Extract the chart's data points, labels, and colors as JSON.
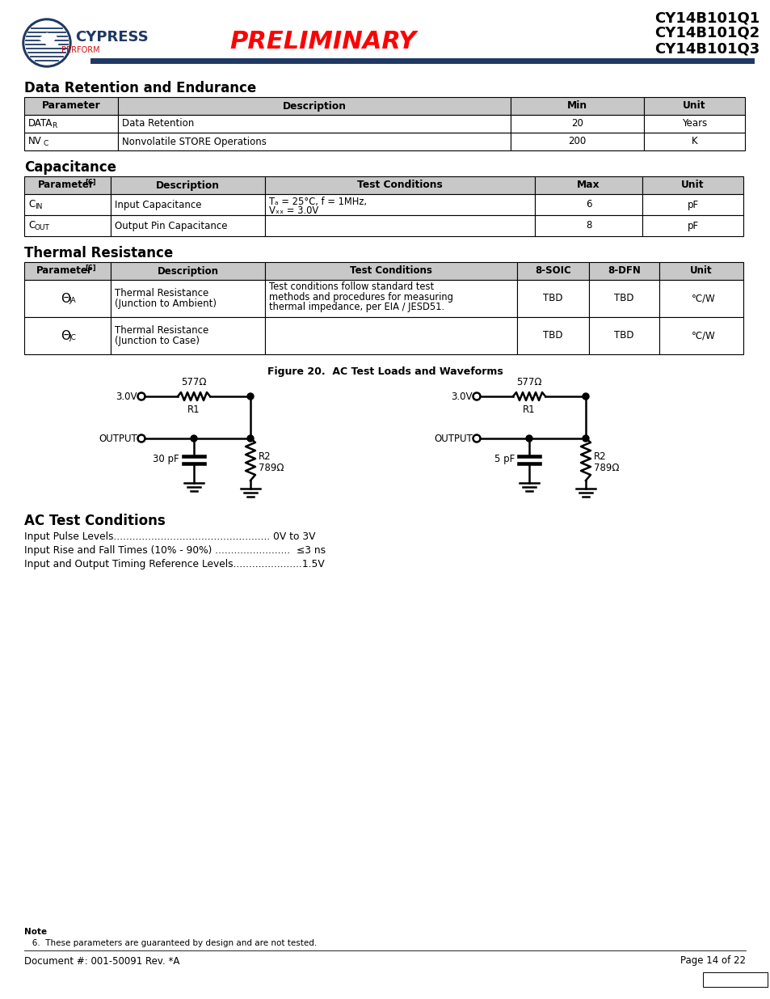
{
  "page_title_lines": [
    "CY14B101Q1",
    "CY14B101Q2",
    "CY14B101Q3"
  ],
  "preliminary_text": "PRELIMINARY",
  "header_line_color": "#1f3864",
  "section1_title": "Data Retention and Endurance",
  "section2_title": "Capacitance",
  "section3_title": "Thermal Resistance",
  "figure_caption": "Figure 20.  AC Test Loads and Waveforms",
  "ac_test_title": "AC Test Conditions",
  "ac_test_lines": [
    "Input Pulse Levels.................................................. 0V to 3V",
    "Input Rise and Fall Times (10% - 90%) ........................  ≤3 ns",
    "Input and Output Timing Reference Levels......................1.5V"
  ],
  "footer_doc": "Document #: 001-50091 Rev. *A",
  "footer_page": "Page 14 of 22",
  "table_header_bg": "#c8c8c8",
  "body_bg": "#ffffff"
}
